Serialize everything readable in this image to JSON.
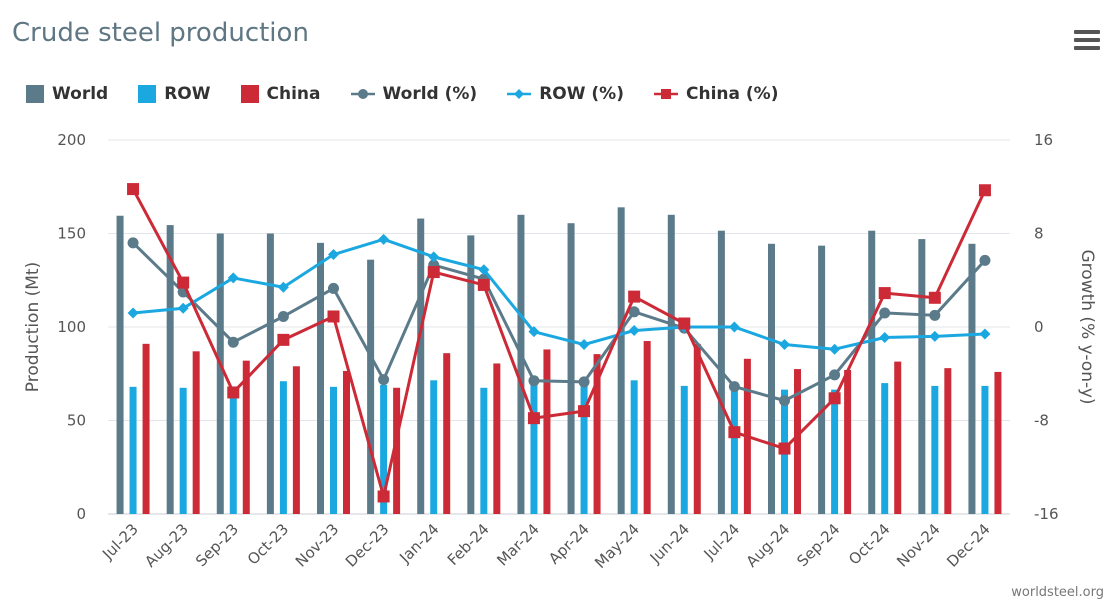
{
  "title": "Crude steel production",
  "credit": "worldsteel.org",
  "menu_icon": "hamburger-menu-icon",
  "colors": {
    "world": "#5b7a8a",
    "row": "#1ba8e0",
    "china": "#cc2a36",
    "grid": "#e2e6ea"
  },
  "legend": [
    {
      "label": "World",
      "symbol": "bar",
      "color": "#5b7a8a"
    },
    {
      "label": "ROW",
      "symbol": "bar",
      "color": "#1ba8e0"
    },
    {
      "label": "China",
      "symbol": "bar",
      "color": "#cc2a36"
    },
    {
      "label": "World (%)",
      "symbol": "circle-line",
      "color": "#5b7a8a"
    },
    {
      "label": "ROW (%)",
      "symbol": "diamond-line",
      "color": "#1ba8e0"
    },
    {
      "label": "China (%)",
      "symbol": "square-line",
      "color": "#cc2a36"
    }
  ],
  "chart_data": {
    "type": "bar",
    "categories": [
      "Jul-23",
      "Aug-23",
      "Sep-23",
      "Oct-23",
      "Nov-23",
      "Dec-23",
      "Jan-24",
      "Feb-24",
      "Mar-24",
      "Apr-24",
      "May-24",
      "Jun-24",
      "Jul-24",
      "Aug-24",
      "Sep-24",
      "Oct-24",
      "Nov-24",
      "Dec-24"
    ],
    "ylabel": "Production (Mt)",
    "ylim": [
      0,
      200
    ],
    "yticks": [
      0,
      50,
      100,
      150,
      200
    ],
    "y2label": "Growth (% y-on-y)",
    "y2lim": [
      -16,
      16
    ],
    "y2ticks": [
      -16,
      -8,
      0,
      8,
      16
    ],
    "grid": true,
    "legend_position": "top-left",
    "bar_series": [
      {
        "name": "World",
        "values": [
          159.5,
          154.5,
          150,
          150,
          145,
          136,
          158,
          149,
          160,
          155.5,
          164,
          160,
          151.5,
          144.5,
          143.5,
          151.5,
          147,
          144.5
        ]
      },
      {
        "name": "ROW",
        "values": [
          68,
          67.5,
          67.5,
          71,
          68,
          69,
          71.5,
          67.5,
          72,
          69.5,
          71.5,
          68.5,
          68.5,
          66.5,
          66.5,
          70,
          68.5,
          68.5
        ]
      },
      {
        "name": "China",
        "values": [
          91,
          87,
          82,
          79,
          76.5,
          67.5,
          86,
          80.5,
          88,
          85.5,
          92.5,
          91,
          83,
          77.5,
          77,
          81.5,
          78,
          76
        ]
      }
    ],
    "line_series": [
      {
        "name": "World (%)",
        "marker": "circle",
        "values": [
          7.2,
          3.0,
          -1.3,
          0.9,
          3.3,
          -4.5,
          5.3,
          4.1,
          -4.6,
          -4.7,
          1.3,
          -0.1,
          -5.1,
          -6.3,
          -4.1,
          1.2,
          1.0,
          5.7
        ]
      },
      {
        "name": "ROW (%)",
        "marker": "diamond",
        "values": [
          1.2,
          1.6,
          4.2,
          3.4,
          6.2,
          7.5,
          6.0,
          4.9,
          -0.4,
          -1.5,
          -0.3,
          0,
          0,
          -1.5,
          -1.9,
          -0.9,
          -0.8,
          -0.6
        ]
      },
      {
        "name": "China (%)",
        "marker": "square",
        "values": [
          11.8,
          3.8,
          -5.6,
          -1.1,
          0.9,
          -14.5,
          4.7,
          3.6,
          -7.8,
          -7.2,
          2.6,
          0.3,
          -9.0,
          -10.4,
          -6.1,
          2.9,
          2.5,
          11.7
        ]
      }
    ]
  }
}
